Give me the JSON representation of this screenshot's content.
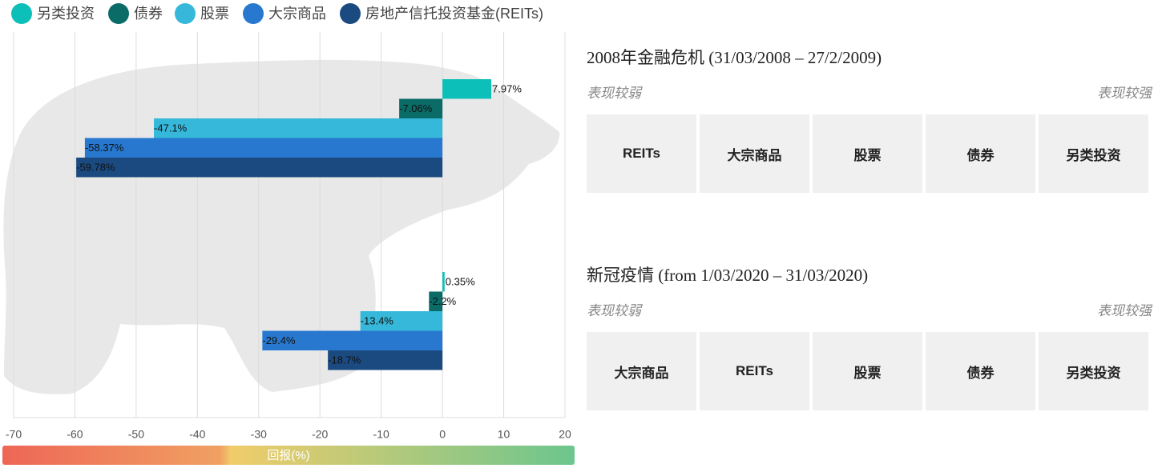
{
  "chart_data": {
    "type": "hbar",
    "x_label": "回报(%)",
    "categories": [
      null,
      null
    ],
    "series": [
      {
        "name": "另类投资",
        "color": "#0cbfb9",
        "values": [
          7.97,
          0.35
        ],
        "value_labels": [
          "7.97%",
          "0.35%"
        ]
      },
      {
        "name": "债券",
        "color": "#0a6b67",
        "values": [
          -7.06,
          -2.2
        ],
        "value_labels": [
          "-7.06%",
          "-2.2%"
        ]
      },
      {
        "name": "股票",
        "color": "#35b8d9",
        "values": [
          -47.1,
          -13.4
        ],
        "value_labels": [
          "-47.1%",
          "-13.4%"
        ]
      },
      {
        "name": "大宗商品",
        "color": "#2878cf",
        "values": [
          -58.37,
          -29.4
        ],
        "value_labels": [
          "-58.37%",
          "-29.4%"
        ]
      },
      {
        "name": "房地产信托投资基金(REITs)",
        "color": "#1a4a80",
        "values": [
          -59.78,
          -18.7
        ],
        "value_labels": [
          "-59.78%",
          "-18.7%"
        ]
      }
    ],
    "xlim": [
      -70,
      20
    ],
    "xticks": [
      -70,
      -60,
      -50,
      -40,
      -30,
      -20,
      -10,
      0,
      10,
      20
    ],
    "grid": true,
    "legend": "top"
  },
  "panels": [
    {
      "title": "2008年金融危机 (31/03/2008 – 27/2/2009)",
      "weak": "表现较弱",
      "strong": "表现较强",
      "items": [
        "REITs",
        "大宗商品",
        "股票",
        "债券",
        "另类投资"
      ]
    },
    {
      "title": "新冠疫情 (from 1/03/2020 – 31/03/2020)",
      "weak": "表现较弱",
      "strong": "表现较强",
      "items": [
        "大宗商品",
        "REITs",
        "股票",
        "债券",
        "另类投资"
      ]
    }
  ]
}
